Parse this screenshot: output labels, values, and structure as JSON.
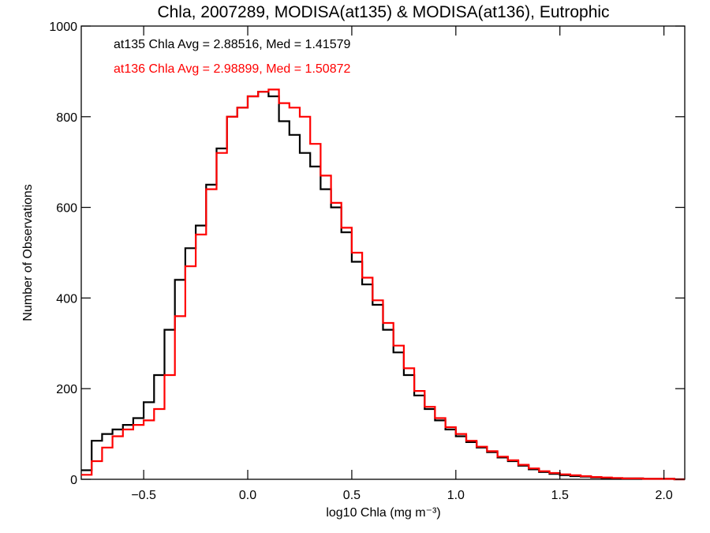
{
  "chart_data": {
    "type": "step",
    "title": "Chla, 2007289, MODISA(at135) & MODISA(at136), Eutrophic",
    "xlabel": "log10 Chla (mg m⁻³)",
    "ylabel": "Number of Observations",
    "xlim": [
      -0.8,
      2.1
    ],
    "ylim": [
      0,
      1000
    ],
    "xticks": [
      -0.5,
      0.0,
      0.5,
      1.0,
      1.5,
      2.0
    ],
    "xtick_labels": [
      "−0.5",
      "0.0",
      "0.5",
      "1.0",
      "1.5",
      "2.0"
    ],
    "yticks": [
      0,
      200,
      400,
      600,
      800,
      1000
    ],
    "ytick_labels": [
      "0",
      "200",
      "400",
      "600",
      "800",
      "1000"
    ],
    "grid": false,
    "annotations": [
      {
        "text": "at135 Chla Avg = 2.88516, Med = 1.41579",
        "color": "#000000"
      },
      {
        "text": "at136 Chla Avg = 2.98899, Med = 1.50872",
        "color": "#ff0000"
      }
    ],
    "series": [
      {
        "color": "#000000",
        "x": [
          -0.8,
          -0.75,
          -0.7,
          -0.65,
          -0.6,
          -0.55,
          -0.5,
          -0.45,
          -0.4,
          -0.35,
          -0.3,
          -0.25,
          -0.2,
          -0.15,
          -0.1,
          -0.05,
          0.0,
          0.05,
          0.1,
          0.15,
          0.2,
          0.25,
          0.3,
          0.35,
          0.4,
          0.45,
          0.5,
          0.55,
          0.6,
          0.65,
          0.7,
          0.75,
          0.8,
          0.85,
          0.9,
          0.95,
          1.0,
          1.05,
          1.1,
          1.15,
          1.2,
          1.25,
          1.3,
          1.35,
          1.4,
          1.45,
          1.5,
          1.55,
          1.6,
          1.65,
          1.7,
          1.75,
          1.8,
          1.85,
          1.9,
          1.95,
          2.0,
          2.05,
          2.1
        ],
        "y": [
          20,
          85,
          100,
          110,
          120,
          135,
          170,
          230,
          330,
          440,
          510,
          560,
          650,
          730,
          800,
          820,
          845,
          855,
          845,
          790,
          760,
          720,
          690,
          640,
          600,
          545,
          480,
          430,
          385,
          330,
          280,
          230,
          185,
          155,
          130,
          110,
          95,
          82,
          70,
          60,
          48,
          40,
          30,
          22,
          16,
          12,
          9,
          7,
          6,
          4,
          3,
          2,
          2,
          2,
          1,
          1,
          1,
          0,
          0
        ]
      },
      {
        "color": "#ff0000",
        "x": [
          -0.8,
          -0.75,
          -0.7,
          -0.65,
          -0.6,
          -0.55,
          -0.5,
          -0.45,
          -0.4,
          -0.35,
          -0.3,
          -0.25,
          -0.2,
          -0.15,
          -0.1,
          -0.05,
          0.0,
          0.05,
          0.1,
          0.15,
          0.2,
          0.25,
          0.3,
          0.35,
          0.4,
          0.45,
          0.5,
          0.55,
          0.6,
          0.65,
          0.7,
          0.75,
          0.8,
          0.85,
          0.9,
          0.95,
          1.0,
          1.05,
          1.1,
          1.15,
          1.2,
          1.25,
          1.3,
          1.35,
          1.4,
          1.45,
          1.5,
          1.55,
          1.6,
          1.65,
          1.7,
          1.75,
          1.8,
          1.85,
          1.9,
          1.95,
          2.0,
          2.05,
          2.1
        ],
        "y": [
          10,
          40,
          70,
          95,
          110,
          120,
          130,
          155,
          230,
          360,
          470,
          540,
          640,
          720,
          800,
          820,
          845,
          855,
          860,
          830,
          820,
          800,
          740,
          670,
          610,
          555,
          500,
          445,
          395,
          345,
          295,
          245,
          195,
          160,
          135,
          115,
          100,
          85,
          72,
          62,
          50,
          42,
          32,
          24,
          18,
          14,
          11,
          9,
          7,
          5,
          4,
          3,
          2,
          2,
          1,
          1,
          1,
          0,
          0
        ]
      }
    ]
  }
}
